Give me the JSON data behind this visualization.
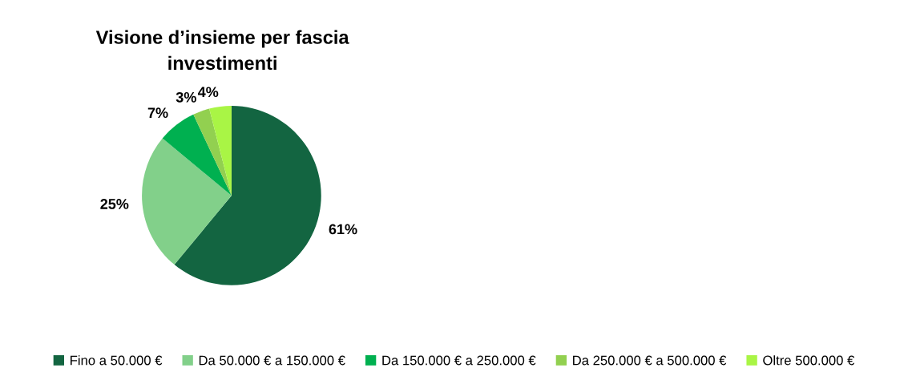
{
  "chart_data": {
    "type": "pie",
    "title": "Visione d’insieme per fascia\ninvestimenti",
    "categories": [
      "Fino a 50.000 €",
      "Da 50.000 € a 150.000 €",
      "Da 150.000 € a 250.000 €",
      "Da 250.000 € a 500.000 €",
      "Oltre 500.000 €"
    ],
    "values": [
      61,
      25,
      7,
      3,
      4
    ],
    "colors": [
      "#136541",
      "#82d08a",
      "#00b050",
      "#92d050",
      "#a9f545"
    ],
    "value_labels": [
      "61%",
      "25%",
      "7%",
      "3%",
      "4%"
    ],
    "legend": "bottom"
  }
}
